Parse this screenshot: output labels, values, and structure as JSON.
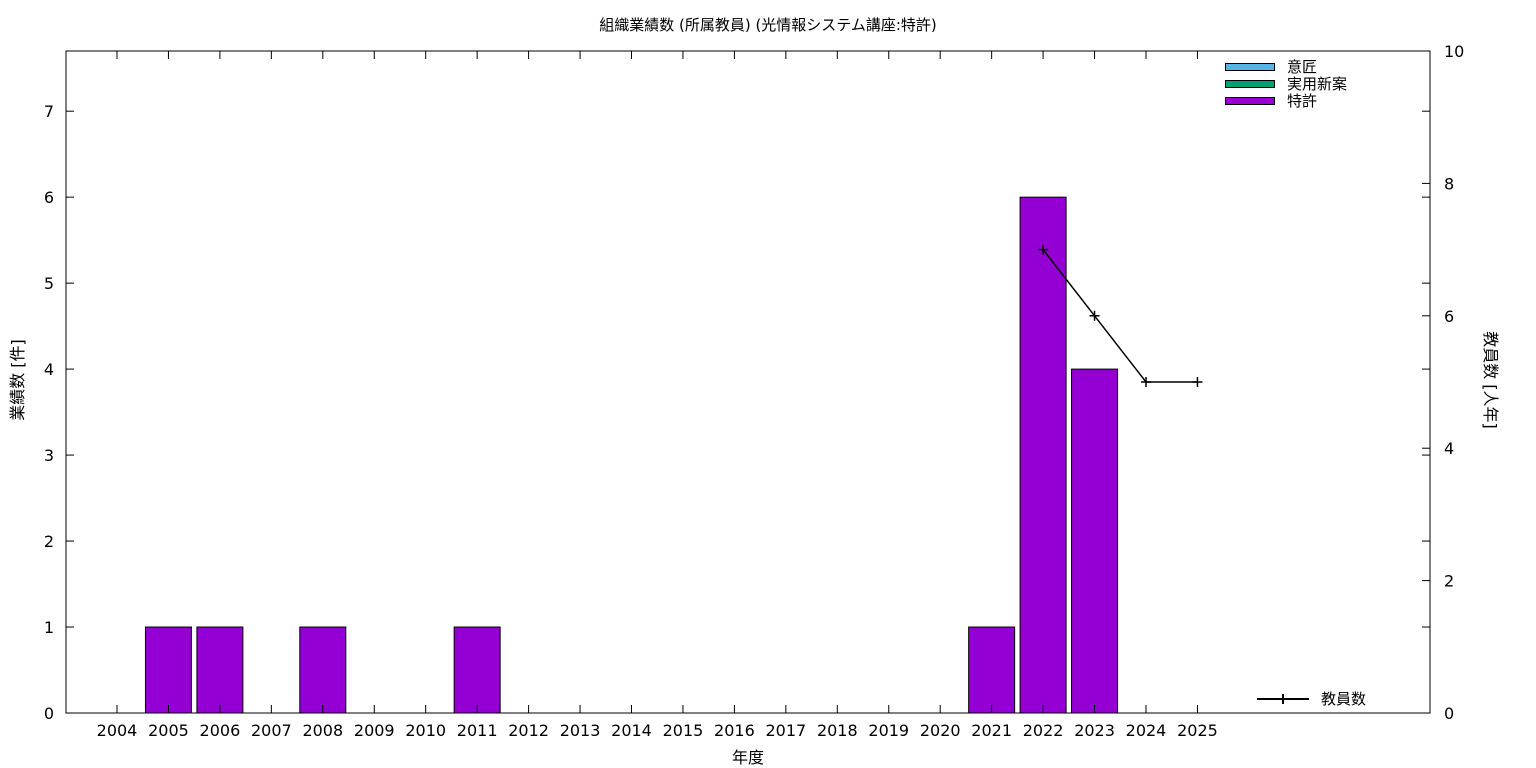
{
  "chart_data": {
    "type": "bar",
    "title": "組織業績数 (所属教員) (光情報システム講座:特許)",
    "xlabel": "年度",
    "ylabel": "業績数 [件]",
    "y2label": "教員数 [人年]",
    "categories": [
      "2004",
      "2005",
      "2006",
      "2007",
      "2008",
      "2009",
      "2010",
      "2011",
      "2012",
      "2013",
      "2014",
      "2015",
      "2016",
      "2017",
      "2018",
      "2019",
      "2020",
      "2021",
      "2022",
      "2023",
      "2024",
      "2025"
    ],
    "ylim": [
      0,
      7.7
    ],
    "y_ticks": [
      0,
      1,
      2,
      3,
      4,
      5,
      6,
      7
    ],
    "y2lim": [
      0,
      10
    ],
    "y2_ticks": [
      0,
      2,
      4,
      6,
      8,
      10
    ],
    "grid": false,
    "legend_placement": "top-right",
    "series": [
      {
        "name": "意匠",
        "color": "#56b4e9",
        "values": [
          0,
          0,
          0,
          0,
          0,
          0,
          0,
          0,
          0,
          0,
          0,
          0,
          0,
          0,
          0,
          0,
          0,
          0,
          0,
          0,
          0,
          0
        ]
      },
      {
        "name": "実用新案",
        "color": "#009e73",
        "values": [
          0,
          0,
          0,
          0,
          0,
          0,
          0,
          0,
          0,
          0,
          0,
          0,
          0,
          0,
          0,
          0,
          0,
          0,
          0,
          0,
          0,
          0
        ]
      },
      {
        "name": "特許",
        "color": "#9400d3",
        "values": [
          0,
          1,
          1,
          0,
          1,
          0,
          0,
          1,
          0,
          0,
          0,
          0,
          0,
          0,
          0,
          0,
          0,
          1,
          6,
          4,
          0,
          0
        ]
      }
    ],
    "line_series": {
      "name": "教員数",
      "axis": "y2",
      "color": "#000000",
      "points": [
        {
          "x": "2022",
          "y": 7
        },
        {
          "x": "2023",
          "y": 6
        },
        {
          "x": "2024",
          "y": 5
        },
        {
          "x": "2025",
          "y": 5
        }
      ]
    }
  }
}
